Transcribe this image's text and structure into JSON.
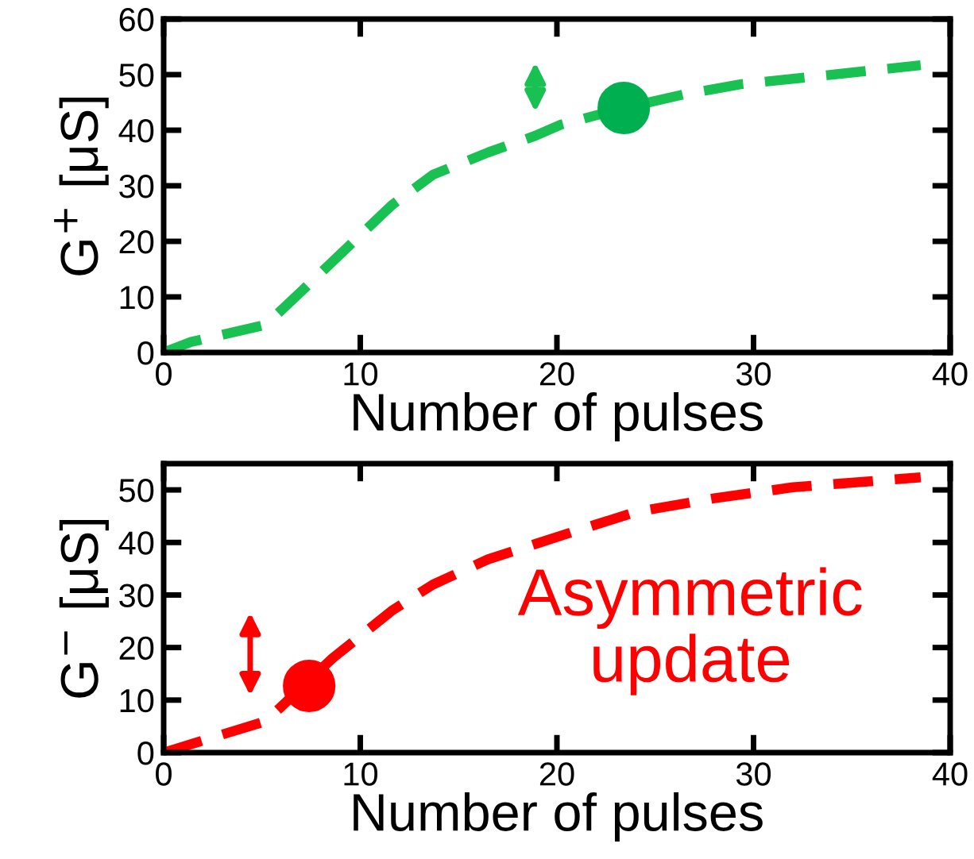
{
  "chart_data": [
    {
      "type": "line",
      "xlabel": "Number of pulses",
      "ylabel": "G$^{+}$ [μS]",
      "xlim": [
        0,
        40
      ],
      "xticks": [
        0,
        10,
        20,
        30,
        40
      ],
      "ylim": [
        0,
        60
      ],
      "yticks": [
        0,
        10,
        20,
        30,
        40,
        50,
        60
      ],
      "grid": false,
      "legend": false,
      "line_style": "dashed",
      "series": [
        {
          "color": "#19c052",
          "x": [
            0,
            1.4,
            5.2,
            7.0,
            8.6,
            11.6,
            13.7,
            16.5,
            18.9,
            20.2,
            23.4,
            26.4,
            29.4,
            34.3,
            38.5
          ],
          "values": [
            0,
            1.9,
            5,
            11,
            16.4,
            26.5,
            32,
            36,
            39,
            41,
            44,
            46.4,
            48.3,
            50.1,
            51.7
          ]
        },
        {
          "type": "scatter",
          "color": "#00b050",
          "marker": "circle",
          "x": [
            23.4
          ],
          "values": [
            44
          ]
        }
      ]
    },
    {
      "type": "line",
      "xlabel": "Number of pulses",
      "ylabel": "G$^{−}$ [μS]",
      "xlim": [
        0,
        40
      ],
      "xticks": [
        0,
        10,
        20,
        30,
        40
      ],
      "ylim": [
        0,
        55
      ],
      "yticks": [
        0,
        10,
        20,
        30,
        40,
        50
      ],
      "grid": false,
      "legend": false,
      "line_style": "dashed",
      "annotations": [
        "Asymmetric\nupdate"
      ],
      "series": [
        {
          "color": "#ff0000",
          "x": [
            0,
            5.2,
            8.6,
            11.6,
            13.7,
            16.5,
            20.8,
            24,
            28,
            32,
            38.5
          ],
          "values": [
            0,
            6,
            18,
            27,
            32,
            36.8,
            42,
            45.8,
            48.4,
            50.5,
            52.4
          ]
        },
        {
          "type": "scatter",
          "color": "#ff0000",
          "marker": "circle",
          "x": [
            7.4
          ],
          "values": [
            12.7
          ]
        }
      ]
    }
  ]
}
